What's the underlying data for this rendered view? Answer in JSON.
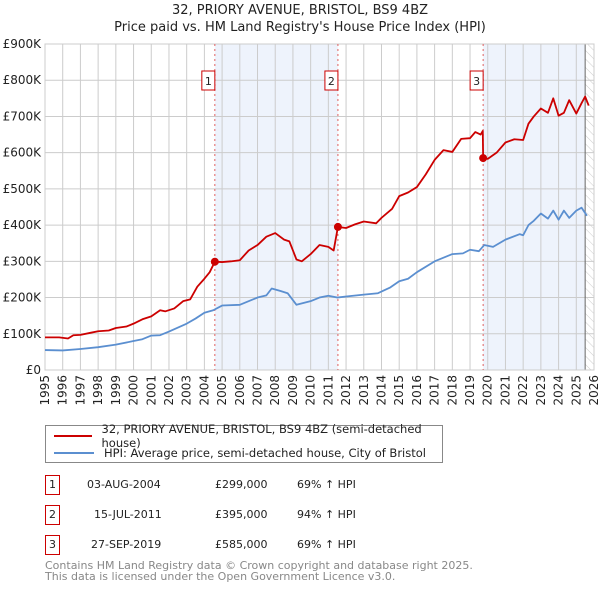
{
  "title": "32, PRIORY AVENUE, BRISTOL, BS9 4BZ",
  "subtitle": "Price paid vs. HM Land Registry's House Price Index (HPI)",
  "chart_data": {
    "type": "line",
    "xlim": [
      1995,
      2026
    ],
    "ylim": [
      0,
      900
    ],
    "y_ticks": [
      "£0",
      "£100K",
      "£200K",
      "£300K",
      "£400K",
      "£500K",
      "£600K",
      "£700K",
      "£800K",
      "£900K"
    ],
    "x_ticks": [
      "1995",
      "1996",
      "1997",
      "1998",
      "1999",
      "2000",
      "2001",
      "2002",
      "2003",
      "2004",
      "2005",
      "2006",
      "2007",
      "2008",
      "2009",
      "2010",
      "2011",
      "2012",
      "2013",
      "2014",
      "2015",
      "2016",
      "2017",
      "2018",
      "2019",
      "2020",
      "2021",
      "2022",
      "2023",
      "2024",
      "2025",
      "2026"
    ],
    "series": [
      {
        "name": "32, PRIORY AVENUE, BRISTOL, BS9 4BZ (semi-detached house)",
        "color": "#cc0000",
        "x": [
          1995,
          1995.8,
          1996.3,
          1996.6,
          1997,
          1997.6,
          1998,
          1998.6,
          1999,
          1999.6,
          2000,
          2000.5,
          2001,
          2001.5,
          2001.8,
          2002.3,
          2002.8,
          2003.2,
          2003.6,
          2004,
          2004.3,
          2004.59,
          2005,
          2005.5,
          2006,
          2006.5,
          2007,
          2007.5,
          2008,
          2008.5,
          2008.8,
          2009.2,
          2009.5,
          2010,
          2010.5,
          2011,
          2011.3,
          2011.54,
          2012,
          2012.5,
          2013,
          2013.7,
          2014,
          2014.6,
          2015,
          2015.5,
          2016,
          2016.5,
          2017,
          2017.5,
          2018,
          2018.5,
          2019,
          2019.3,
          2019.6,
          2019.72,
          2019.74,
          2020,
          2020.5,
          2021,
          2021.5,
          2022,
          2022.3,
          2022.6,
          2023,
          2023.4,
          2023.7,
          2024,
          2024.3,
          2024.6,
          2025,
          2025.3,
          2025.5,
          2025.7
        ],
        "values": [
          90,
          90,
          87,
          96,
          97,
          103,
          107,
          109,
          116,
          120,
          128,
          140,
          148,
          165,
          162,
          170,
          190,
          195,
          230,
          252,
          270,
          299,
          298,
          300,
          303,
          330,
          345,
          368,
          378,
          360,
          355,
          305,
          300,
          320,
          345,
          340,
          330,
          395,
          392,
          402,
          410,
          405,
          420,
          445,
          480,
          490,
          505,
          540,
          580,
          607,
          602,
          638,
          640,
          657,
          650,
          660,
          585,
          583,
          600,
          628,
          637,
          635,
          680,
          700,
          722,
          710,
          750,
          702,
          710,
          745,
          708,
          737,
          755,
          730
        ],
        "sales": [
          {
            "x": 2004.59,
            "v": 299
          },
          {
            "x": 2011.54,
            "v": 395
          },
          {
            "x": 2019.74,
            "v": 585
          }
        ]
      },
      {
        "name": "HPI: Average price, semi-detached house, City of Bristol",
        "color": "#5b8fd0",
        "x": [
          1995,
          1996,
          1997,
          1998,
          1999,
          2000,
          2000.5,
          2001,
          2001.5,
          2002,
          2003,
          2003.5,
          2004,
          2004.5,
          2005,
          2006,
          2007,
          2007.5,
          2007.8,
          2008.3,
          2008.7,
          2009.2,
          2010,
          2010.5,
          2011,
          2011.5,
          2012,
          2013,
          2013.8,
          2014.5,
          2015,
          2015.5,
          2016,
          2017,
          2017.5,
          2018,
          2018.6,
          2019,
          2019.5,
          2019.8,
          2020.3,
          2021,
          2021.8,
          2022,
          2022.3,
          2022.6,
          2023,
          2023.4,
          2023.7,
          2024,
          2024.3,
          2024.6,
          2025,
          2025.3,
          2025.6
        ],
        "values": [
          55,
          54,
          58,
          63,
          70,
          80,
          85,
          95,
          96,
          106,
          128,
          142,
          158,
          165,
          178,
          180,
          200,
          206,
          225,
          218,
          212,
          180,
          190,
          200,
          205,
          200,
          203,
          208,
          212,
          228,
          245,
          252,
          270,
          300,
          310,
          320,
          322,
          332,
          328,
          345,
          340,
          360,
          375,
          372,
          400,
          412,
          432,
          418,
          440,
          415,
          440,
          420,
          440,
          448,
          426
        ]
      }
    ],
    "annotations": [
      {
        "label": "1",
        "x": 2004.59
      },
      {
        "label": "2",
        "x": 2011.54
      },
      {
        "label": "3",
        "x": 2019.74
      }
    ]
  },
  "legend": [
    {
      "label": "32, PRIORY AVENUE, BRISTOL, BS9 4BZ (semi-detached house)"
    },
    {
      "label": "HPI: Average price, semi-detached house, City of Bristol"
    }
  ],
  "sales": [
    {
      "num": "1",
      "date": "03-AUG-2004",
      "price": "£299,000",
      "hpi": "69% ↑ HPI"
    },
    {
      "num": "2",
      "date": "15-JUL-2011",
      "price": "£395,000",
      "hpi": "94% ↑ HPI"
    },
    {
      "num": "3",
      "date": "27-SEP-2019",
      "price": "£585,000",
      "hpi": "69% ↑ HPI"
    }
  ],
  "footer": [
    "Contains HM Land Registry data © Crown copyright and database right 2025.",
    "This data is licensed under the Open Government Licence v3.0."
  ]
}
